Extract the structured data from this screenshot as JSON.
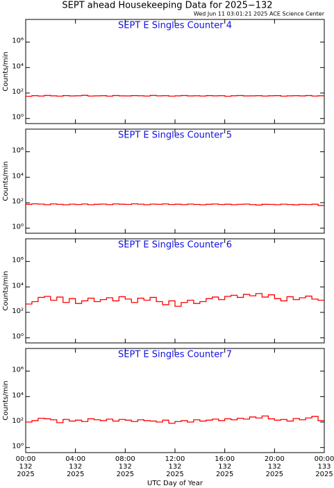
{
  "header": {
    "title": "SEPT ahead Housekeeping Data for 2025−132",
    "subtitle": "Wed Jun 11 03:01:21 2025 ACE Science Center"
  },
  "chart_data": [
    {
      "type": "line",
      "title": "SEPT E Singles Counter 4",
      "ylabel": "Counts/min",
      "log_scale": true,
      "ylim": [
        0.4,
        60000000
      ],
      "yticks": [
        {
          "value": 1,
          "label": "10⁰"
        },
        {
          "value": 100,
          "label": "10²"
        },
        {
          "value": 10000,
          "label": "10⁴"
        },
        {
          "value": 1000000,
          "label": "10⁶"
        }
      ],
      "xlim": [
        0,
        24
      ],
      "x": [
        0,
        0.5,
        1,
        1.5,
        2,
        2.5,
        3,
        3.5,
        4,
        4.5,
        5,
        5.5,
        6,
        6.5,
        7,
        7.5,
        8,
        8.5,
        9,
        9.5,
        10,
        10.5,
        11,
        11.5,
        12,
        12.5,
        13,
        13.5,
        14,
        14.5,
        15,
        15.5,
        16,
        16.5,
        17,
        17.5,
        18,
        18.5,
        19,
        19.5,
        20,
        20.5,
        21,
        21.5,
        22,
        22.5,
        23,
        23.5
      ],
      "series": [
        {
          "color": "#ff0000",
          "values": [
            55,
            62,
            58,
            65,
            60,
            57,
            63,
            59,
            61,
            66,
            58,
            60,
            62,
            57,
            64,
            60,
            59,
            63,
            61,
            58,
            65,
            60,
            62,
            57,
            60,
            64,
            59,
            61,
            58,
            63,
            60,
            62,
            56,
            61,
            64,
            59,
            60,
            62,
            58,
            61,
            63,
            57,
            60,
            62,
            59,
            64,
            58,
            61
          ]
        }
      ]
    },
    {
      "type": "line",
      "title": "SEPT E Singles Counter 5",
      "ylabel": "Counts/min",
      "log_scale": true,
      "ylim": [
        0.4,
        60000000
      ],
      "yticks": [
        {
          "value": 1,
          "label": "10⁰"
        },
        {
          "value": 100,
          "label": "10²"
        },
        {
          "value": 10000,
          "label": "10⁴"
        },
        {
          "value": 1000000,
          "label": "10⁶"
        }
      ],
      "xlim": [
        0,
        24
      ],
      "x": [
        0,
        0.5,
        1,
        1.5,
        2,
        2.5,
        3,
        3.5,
        4,
        4.5,
        5,
        5.5,
        6,
        6.5,
        7,
        7.5,
        8,
        8.5,
        9,
        9.5,
        10,
        10.5,
        11,
        11.5,
        12,
        12.5,
        13,
        13.5,
        14,
        14.5,
        15,
        15.5,
        16,
        16.5,
        17,
        17.5,
        18,
        18.5,
        19,
        19.5,
        20,
        20.5,
        21,
        21.5,
        22,
        22.5,
        23,
        23.5
      ],
      "series": [
        {
          "color": "#ff0000",
          "values": [
            75,
            82,
            78,
            70,
            80,
            74,
            69,
            77,
            72,
            79,
            70,
            75,
            78,
            71,
            80,
            76,
            73,
            82,
            77,
            70,
            78,
            74,
            80,
            72,
            76,
            71,
            78,
            73,
            69,
            75,
            79,
            72,
            76,
            70,
            74,
            78,
            71,
            66,
            75,
            73,
            70,
            77,
            72,
            68,
            74,
            71,
            76,
            60
          ]
        }
      ]
    },
    {
      "type": "line",
      "title": "SEPT E Singles Counter 6",
      "ylabel": "Counts/min",
      "log_scale": true,
      "ylim": [
        0.4,
        60000000
      ],
      "yticks": [
        {
          "value": 1,
          "label": "10⁰"
        },
        {
          "value": 100,
          "label": "10²"
        },
        {
          "value": 10000,
          "label": "10⁴"
        },
        {
          "value": 1000000,
          "label": "10⁶"
        }
      ],
      "xlim": [
        0,
        24
      ],
      "x": [
        0,
        0.5,
        1,
        1.5,
        2,
        2.5,
        3,
        3.5,
        4,
        4.5,
        5,
        5.5,
        6,
        6.5,
        7,
        7.5,
        8,
        8.5,
        9,
        9.5,
        10,
        10.5,
        11,
        11.5,
        12,
        12.5,
        13,
        13.5,
        14,
        14.5,
        15,
        15.5,
        16,
        16.5,
        17,
        17.5,
        18,
        18.5,
        19,
        19.5,
        20,
        20.5,
        21,
        21.5,
        22,
        22.5,
        23,
        23.5
      ],
      "series": [
        {
          "color": "#ff0000",
          "values": [
            450,
            700,
            1500,
            1800,
            900,
            1600,
            600,
            1200,
            500,
            800,
            1300,
            700,
            1000,
            1400,
            800,
            1700,
            1100,
            600,
            1300,
            900,
            1500,
            700,
            400,
            800,
            300,
            600,
            900,
            500,
            700,
            1200,
            1600,
            1000,
            1800,
            2200,
            1500,
            2600,
            2000,
            3000,
            1600,
            2400,
            1200,
            800,
            1700,
            1000,
            1400,
            1900,
            1100,
            900
          ]
        }
      ]
    },
    {
      "type": "line",
      "title": "SEPT E Singles Counter 7",
      "ylabel": "Counts/min",
      "log_scale": true,
      "ylim": [
        0.4,
        60000000
      ],
      "yticks": [
        {
          "value": 1,
          "label": "10⁰"
        },
        {
          "value": 100,
          "label": "10²"
        },
        {
          "value": 10000,
          "label": "10⁴"
        },
        {
          "value": 1000000,
          "label": "10⁶"
        }
      ],
      "xlim": [
        0,
        24
      ],
      "x": [
        0,
        0.5,
        1,
        1.5,
        2,
        2.5,
        3,
        3.5,
        4,
        4.5,
        5,
        5.5,
        6,
        6.5,
        7,
        7.5,
        8,
        8.5,
        9,
        9.5,
        10,
        10.5,
        11,
        11.5,
        12,
        12.5,
        13,
        13.5,
        14,
        14.5,
        15,
        15.5,
        16,
        16.5,
        17,
        17.5,
        18,
        18.5,
        19,
        19.5,
        20,
        20.5,
        21,
        21.5,
        22,
        22.5,
        23,
        23.5
      ],
      "series": [
        {
          "color": "#ff0000",
          "values": [
            100,
            130,
            200,
            180,
            150,
            90,
            160,
            120,
            140,
            110,
            180,
            150,
            130,
            170,
            120,
            160,
            140,
            110,
            150,
            130,
            120,
            100,
            140,
            80,
            110,
            130,
            100,
            150,
            120,
            140,
            170,
            130,
            180,
            150,
            200,
            170,
            250,
            210,
            300,
            180,
            140,
            160,
            120,
            190,
            150,
            210,
            280,
            130
          ]
        }
      ],
      "xlabel": "UTC Day of Year",
      "xticks": [
        {
          "value": 0,
          "label": [
            "00:00",
            "132",
            "2025"
          ]
        },
        {
          "value": 4,
          "label": [
            "04:00",
            "132",
            "2025"
          ]
        },
        {
          "value": 8,
          "label": [
            "08:00",
            "132",
            "2025"
          ]
        },
        {
          "value": 12,
          "label": [
            "12:00",
            "132",
            "2025"
          ]
        },
        {
          "value": 16,
          "label": [
            "16:00",
            "132",
            "2025"
          ]
        },
        {
          "value": 20,
          "label": [
            "20:00",
            "132",
            "2025"
          ]
        },
        {
          "value": 24,
          "label": [
            "00:00",
            "133",
            "2025"
          ]
        }
      ]
    }
  ]
}
